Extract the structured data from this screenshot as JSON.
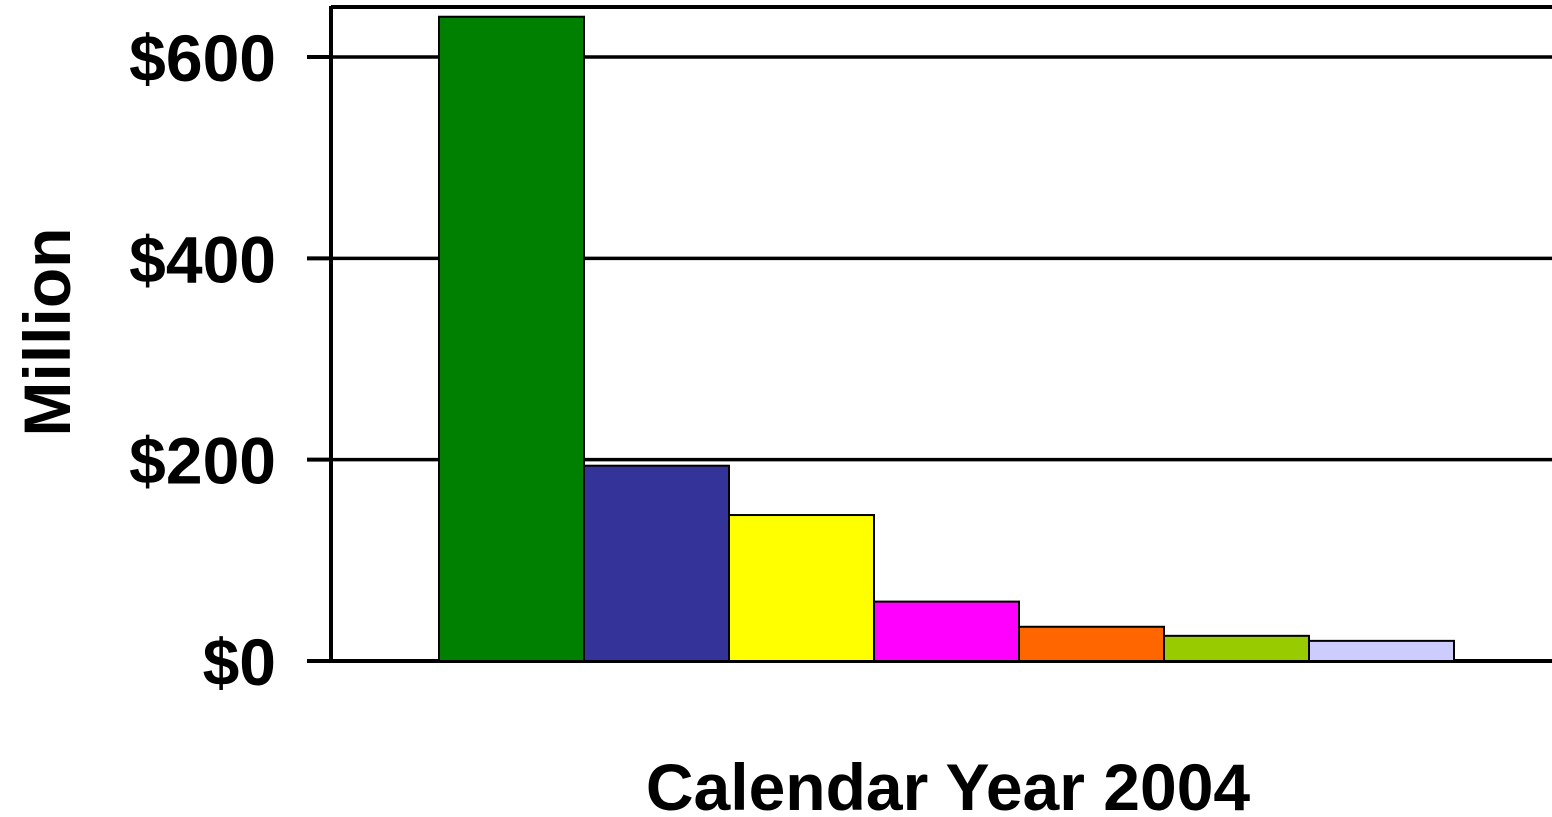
{
  "chart_data": {
    "type": "bar",
    "xlabel": "Calendar Year 2004",
    "ylabel": "Million",
    "ylim": [
      0,
      650
    ],
    "yticks": [
      {
        "value": 0,
        "label": "$0"
      },
      {
        "value": 200,
        "label": "$200"
      },
      {
        "value": 400,
        "label": "$400"
      },
      {
        "value": 600,
        "label": "$600"
      }
    ],
    "grid": true,
    "legend": "none",
    "values": [
      640,
      194,
      145,
      59,
      34,
      25,
      20
    ],
    "colors": [
      "#008000",
      "#333399",
      "#FFFF00",
      "#FF00FF",
      "#FF6600",
      "#99CC00",
      "#CCCCFF"
    ]
  }
}
